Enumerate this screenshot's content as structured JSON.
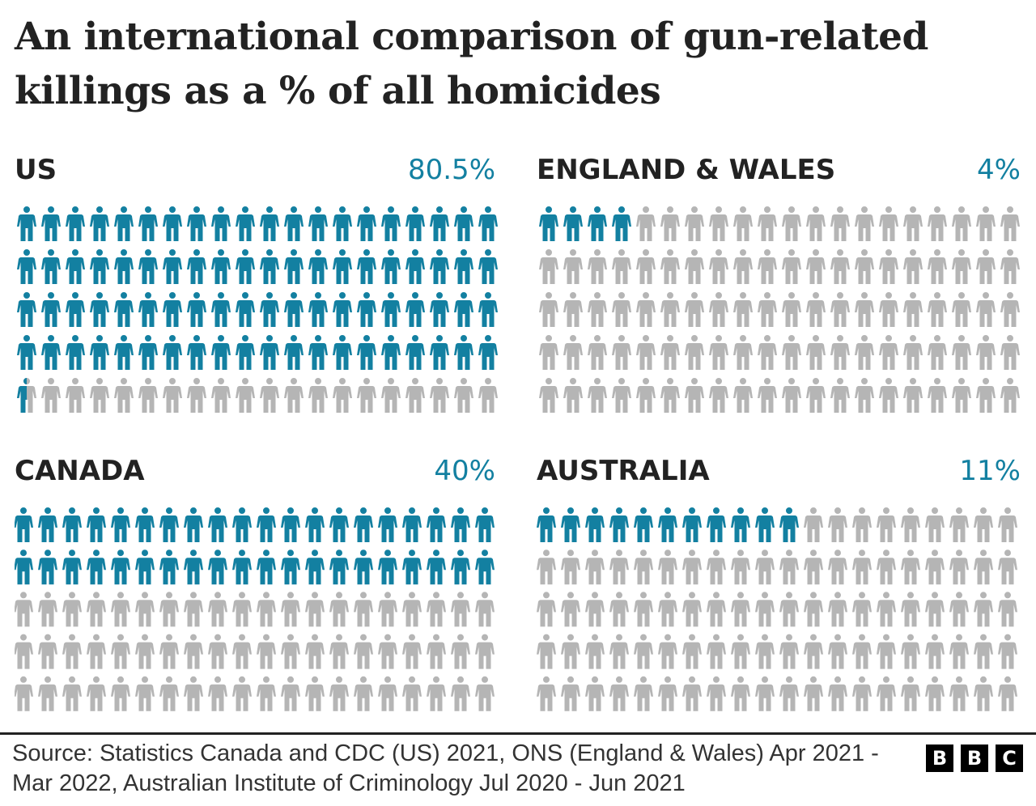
{
  "title": "An international comparison of gun-related killings as a % of all homicides",
  "colors": {
    "highlight": "#1380a1",
    "rest": "#b5b5b5"
  },
  "chart_data": {
    "type": "waffle",
    "icon": "person-icon",
    "icons_per_chart": 100,
    "grid": {
      "columns": 20,
      "rows": 5
    },
    "series": [
      {
        "name": "US",
        "label": "80.5%",
        "value": 80.5
      },
      {
        "name": "ENGLAND & WALES",
        "label": "4%",
        "value": 4
      },
      {
        "name": "CANADA",
        "label": "40%",
        "value": 40
      },
      {
        "name": "AUSTRALIA",
        "label": "11%",
        "value": 11
      }
    ]
  },
  "footer": {
    "source": "Source: Statistics Canada and CDC (US) 2021, ONS (England & Wales) Apr 2021 - Mar 2022, Australian Institute of Criminology Jul 2020 - Jun 2021",
    "logo": [
      "B",
      "B",
      "C"
    ]
  }
}
